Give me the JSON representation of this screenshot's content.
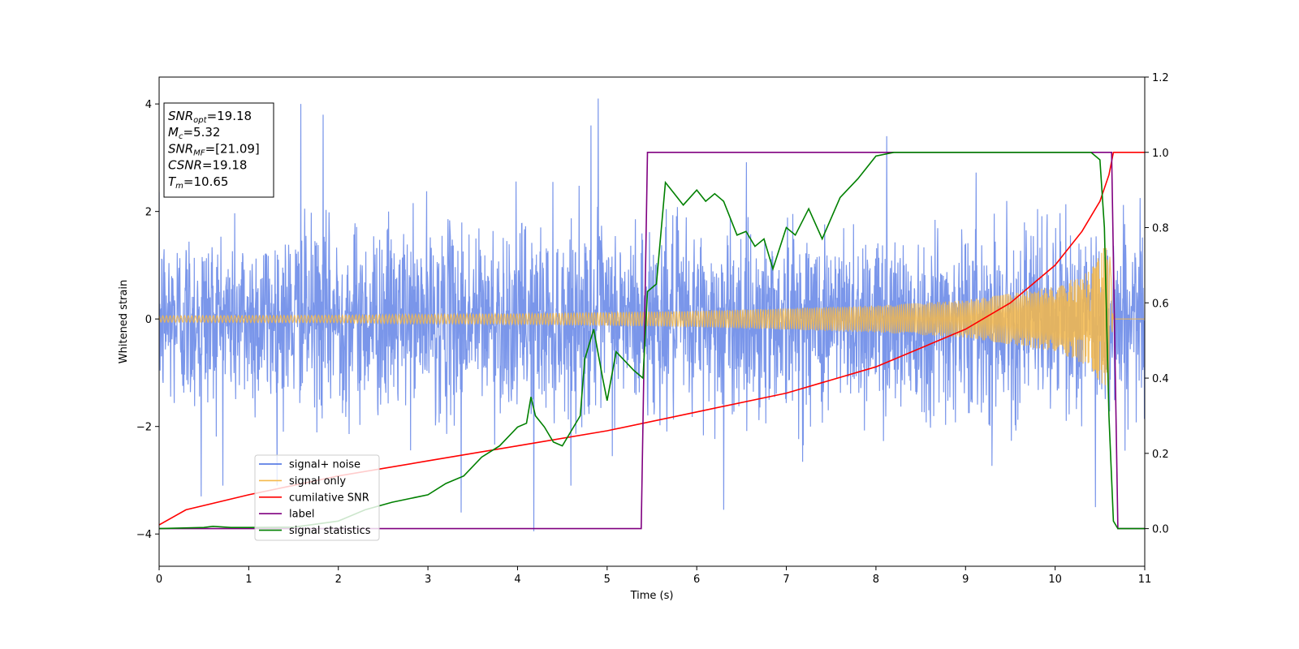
{
  "chart_data": {
    "type": "line",
    "xlabel": "Time (s)",
    "ylabel_left": "Whitened strain",
    "ylabel_right": "",
    "xlim": [
      0,
      11
    ],
    "ylim_left": [
      -4.6,
      4.5
    ],
    "ylim_right": [
      -0.1,
      1.2
    ],
    "x_ticks": [
      "0",
      "1",
      "2",
      "3",
      "4",
      "5",
      "6",
      "7",
      "8",
      "9",
      "10",
      "11"
    ],
    "y_left_ticks": [
      "4",
      "2",
      "0",
      "−2",
      "−4"
    ],
    "y_right_ticks": [
      "1.2",
      "1.0",
      "0.8",
      "0.6",
      "0.4",
      "0.2",
      "0.0"
    ],
    "grid": false,
    "legend_position": "lower-left",
    "legend": [
      {
        "label": "signal+ noise",
        "color": "#4169e1"
      },
      {
        "label": "signal only",
        "color": "#f5b94a"
      },
      {
        "label": "cumilative SNR",
        "color": "#ff0000"
      },
      {
        "label": "label",
        "color": "#800080"
      },
      {
        "label": "signal statistics",
        "color": "#008000"
      }
    ],
    "info_box": [
      {
        "base": "SNR",
        "sub": "opt",
        "value": "=19.18"
      },
      {
        "base": "M",
        "sub": "c",
        "value": "=5.32"
      },
      {
        "base": "SNR",
        "sub": "MF",
        "value": "=[21.09]"
      },
      {
        "base": "CSNR",
        "sub": "",
        "value": "=19.18"
      },
      {
        "base": "T",
        "sub": "m",
        "value": "=10.65"
      }
    ],
    "series": [
      {
        "name": "signal+ noise",
        "axis": "left",
        "color": "#4169e1",
        "opacity": 0.7,
        "noise_std": 0.85,
        "t_range": [
          0,
          10.65
        ],
        "t_end": 11,
        "peak_values": [
          {
            "x": 1.58,
            "y": 4.0
          },
          {
            "x": 1.83,
            "y": 3.8
          },
          {
            "x": 4.9,
            "y": 4.1
          },
          {
            "x": 4.82,
            "y": 3.6
          },
          {
            "x": 8.12,
            "y": 3.4
          },
          {
            "x": 4.18,
            "y": -3.95
          },
          {
            "x": 0.47,
            "y": -3.3
          },
          {
            "x": 3.37,
            "y": -3.6
          },
          {
            "x": 6.3,
            "y": -3.55
          },
          {
            "x": 10.45,
            "y": -3.5
          }
        ]
      },
      {
        "name": "signal only",
        "axis": "left",
        "color": "#f5b94a",
        "opacity": 0.85,
        "t_coalescence": 10.65,
        "envelope": [
          {
            "x": 0,
            "y": 0.06
          },
          {
            "x": 2,
            "y": 0.07
          },
          {
            "x": 4,
            "y": 0.1
          },
          {
            "x": 6,
            "y": 0.15
          },
          {
            "x": 8,
            "y": 0.25
          },
          {
            "x": 9,
            "y": 0.35
          },
          {
            "x": 10,
            "y": 0.6
          },
          {
            "x": 10.4,
            "y": 0.9
          },
          {
            "x": 10.6,
            "y": 1.5
          },
          {
            "x": 10.65,
            "y": 0.0
          },
          {
            "x": 11,
            "y": 0.0
          }
        ]
      },
      {
        "name": "cumilative SNR",
        "axis": "right",
        "color": "#ff0000",
        "points": [
          [
            0.0,
            0.01
          ],
          [
            0.3,
            0.05
          ],
          [
            1.0,
            0.09
          ],
          [
            2.0,
            0.14
          ],
          [
            3.0,
            0.18
          ],
          [
            4.0,
            0.22
          ],
          [
            5.0,
            0.26
          ],
          [
            6.0,
            0.31
          ],
          [
            7.0,
            0.36
          ],
          [
            8.0,
            0.43
          ],
          [
            9.0,
            0.53
          ],
          [
            9.5,
            0.6
          ],
          [
            10.0,
            0.7
          ],
          [
            10.3,
            0.79
          ],
          [
            10.5,
            0.87
          ],
          [
            10.6,
            0.94
          ],
          [
            10.65,
            1.0
          ],
          [
            11.0,
            1.0
          ]
        ]
      },
      {
        "name": "label",
        "axis": "right",
        "color": "#800080",
        "points": [
          [
            0.0,
            0.0
          ],
          [
            5.38,
            0.0
          ],
          [
            5.45,
            1.0
          ],
          [
            10.63,
            1.0
          ],
          [
            10.7,
            0.0
          ],
          [
            11.0,
            0.0
          ]
        ]
      },
      {
        "name": "signal statistics",
        "axis": "right",
        "color": "#008000",
        "points": [
          [
            0.0,
            0.0
          ],
          [
            0.5,
            0.003
          ],
          [
            0.6,
            0.006
          ],
          [
            0.8,
            0.003
          ],
          [
            1.0,
            0.003
          ],
          [
            1.5,
            0.004
          ],
          [
            2.0,
            0.02
          ],
          [
            2.3,
            0.05
          ],
          [
            2.6,
            0.07
          ],
          [
            2.8,
            0.08
          ],
          [
            3.0,
            0.09
          ],
          [
            3.2,
            0.12
          ],
          [
            3.4,
            0.14
          ],
          [
            3.6,
            0.19
          ],
          [
            3.8,
            0.22
          ],
          [
            4.0,
            0.27
          ],
          [
            4.1,
            0.28
          ],
          [
            4.15,
            0.35
          ],
          [
            4.2,
            0.3
          ],
          [
            4.3,
            0.27
          ],
          [
            4.4,
            0.23
          ],
          [
            4.5,
            0.22
          ],
          [
            4.6,
            0.26
          ],
          [
            4.7,
            0.3
          ],
          [
            4.75,
            0.45
          ],
          [
            4.85,
            0.53
          ],
          [
            4.95,
            0.4
          ],
          [
            5.0,
            0.34
          ],
          [
            5.1,
            0.47
          ],
          [
            5.3,
            0.42
          ],
          [
            5.4,
            0.4
          ],
          [
            5.45,
            0.63
          ],
          [
            5.55,
            0.65
          ],
          [
            5.65,
            0.92
          ],
          [
            5.75,
            0.89
          ],
          [
            5.85,
            0.86
          ],
          [
            6.0,
            0.9
          ],
          [
            6.1,
            0.87
          ],
          [
            6.2,
            0.89
          ],
          [
            6.3,
            0.87
          ],
          [
            6.45,
            0.78
          ],
          [
            6.55,
            0.79
          ],
          [
            6.65,
            0.75
          ],
          [
            6.75,
            0.77
          ],
          [
            6.85,
            0.69
          ],
          [
            7.0,
            0.8
          ],
          [
            7.1,
            0.78
          ],
          [
            7.25,
            0.85
          ],
          [
            7.4,
            0.77
          ],
          [
            7.6,
            0.88
          ],
          [
            7.8,
            0.93
          ],
          [
            8.0,
            0.99
          ],
          [
            8.2,
            1.0
          ],
          [
            8.5,
            1.0
          ],
          [
            9.0,
            1.0
          ],
          [
            10.0,
            1.0
          ],
          [
            10.4,
            1.0
          ],
          [
            10.5,
            0.98
          ],
          [
            10.55,
            0.8
          ],
          [
            10.6,
            0.3
          ],
          [
            10.65,
            0.02
          ],
          [
            10.7,
            0.0
          ],
          [
            11.0,
            0.0
          ]
        ]
      }
    ]
  }
}
